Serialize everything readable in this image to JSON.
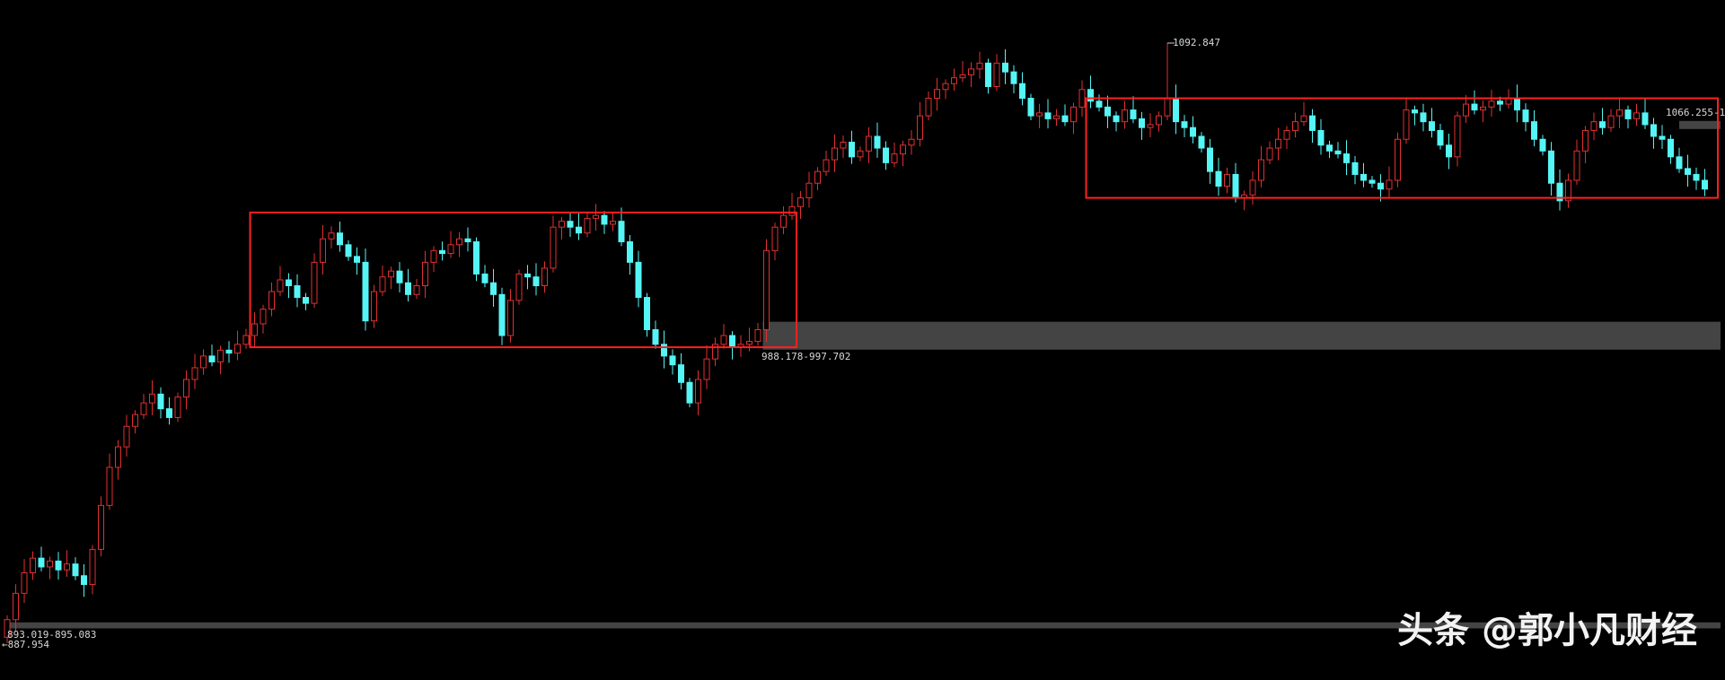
{
  "chart_data": {
    "type": "candlestick",
    "ylim": [
      887.954,
      1092.847
    ],
    "colors": {
      "up": "#e03030",
      "down": "#55f5f5",
      "box": "#ff2020",
      "band": "#444444",
      "background": "#000000"
    },
    "first_open": 890,
    "closes": [
      896,
      905,
      912,
      917,
      914,
      916,
      913,
      915,
      911,
      908,
      920,
      935,
      948,
      955,
      962,
      966,
      970,
      973,
      968,
      965,
      972,
      978,
      982,
      986,
      984,
      988,
      987,
      990,
      993,
      997,
      1002,
      1008,
      1012,
      1010,
      1006,
      1004,
      1018,
      1026,
      1028,
      1024,
      1020,
      1018,
      998,
      1008,
      1013,
      1015,
      1011,
      1007,
      1010,
      1018,
      1022,
      1021,
      1024,
      1026,
      1025,
      1014,
      1011,
      1007,
      993,
      1005,
      1014,
      1013,
      1010,
      1016,
      1030,
      1032,
      1030,
      1028,
      1033,
      1034,
      1031,
      1032,
      1025,
      1018,
      1006,
      995,
      990,
      986,
      983,
      977,
      970,
      978,
      985,
      990,
      993,
      989,
      990,
      991,
      995,
      1022,
      1030,
      1034,
      1037,
      1040,
      1045,
      1049,
      1053,
      1057,
      1059,
      1054,
      1056,
      1061,
      1057,
      1052,
      1055,
      1058,
      1060,
      1068,
      1074,
      1077,
      1079,
      1081,
      1082,
      1084,
      1086,
      1078,
      1086,
      1083,
      1079,
      1074,
      1068,
      1069,
      1067,
      1068,
      1066,
      1071,
      1077,
      1073,
      1071,
      1068,
      1066,
      1070,
      1067,
      1064,
      1065,
      1068,
      1074,
      1066,
      1064,
      1061,
      1057,
      1049,
      1044,
      1048,
      1040,
      1041,
      1046,
      1053,
      1057,
      1060,
      1063,
      1066,
      1068,
      1063,
      1058,
      1056,
      1055,
      1052,
      1048,
      1046,
      1045,
      1043,
      1046,
      1060,
      1070,
      1069,
      1066,
      1063,
      1058,
      1054,
      1068,
      1072,
      1070,
      1071,
      1073,
      1072,
      1074,
      1070,
      1066,
      1060,
      1056,
      1045,
      1039,
      1046,
      1056,
      1063,
      1066,
      1064,
      1068,
      1070,
      1067,
      1069,
      1065,
      1061,
      1060,
      1054,
      1050,
      1048,
      1046,
      1043
    ],
    "bands": [
      {
        "from": 988.178,
        "to": 997.702,
        "label": "988.178-997.702"
      },
      {
        "from": 893.019,
        "to": 895.083,
        "label": "893.019-895.083"
      },
      {
        "from": 1063.5,
        "to": 1066.255,
        "label": "1066.255-1"
      }
    ],
    "range_boxes": [
      {
        "from_index": 29,
        "to_index": 92,
        "low": 989,
        "high": 1035
      },
      {
        "from_index": 127,
        "to_index": 200,
        "low": 1040,
        "high": 1074
      }
    ],
    "annotations": {
      "high": "1092.847",
      "high_index": 136,
      "low": "←887.954"
    }
  },
  "watermark": "头条 @郭小凡财经"
}
